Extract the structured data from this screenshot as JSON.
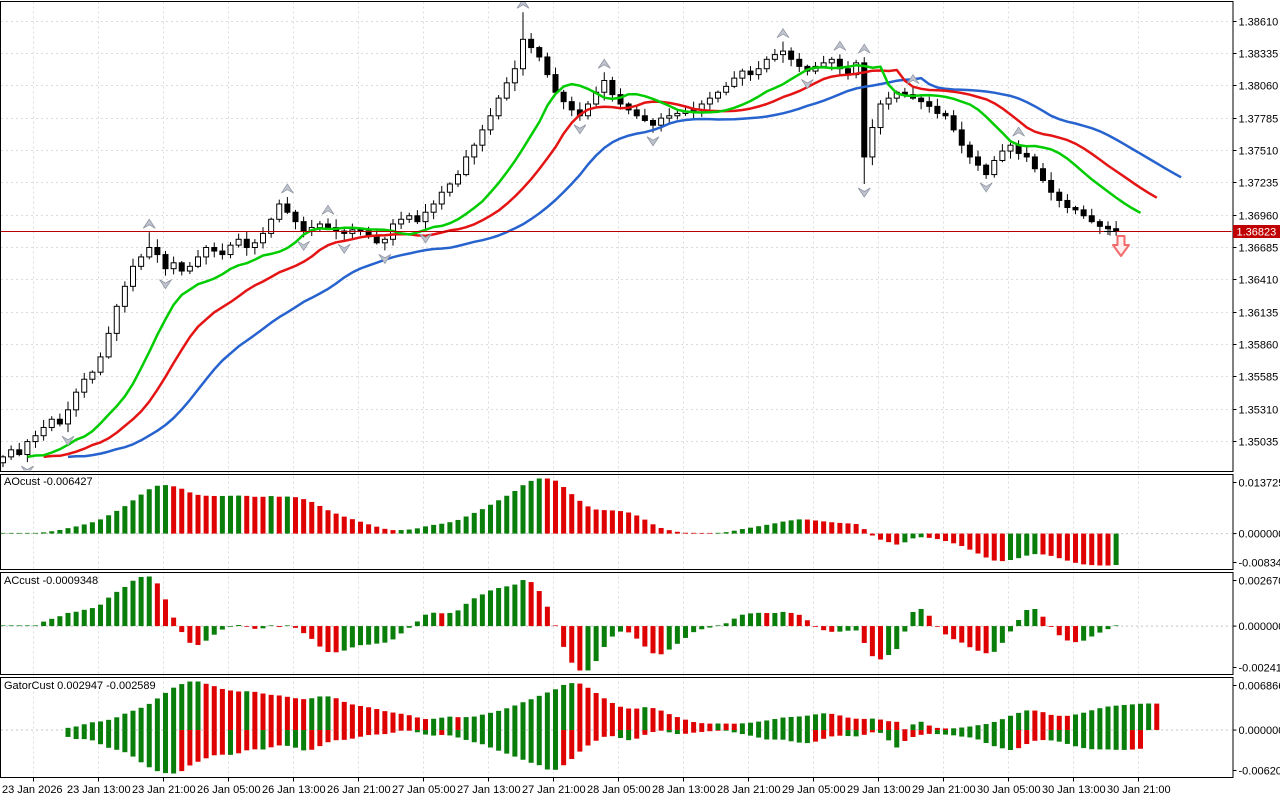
{
  "chart_data": {
    "type": "candlestick",
    "title": "",
    "time_axis": {
      "labels": [
        "23 Jan 2026",
        "23 Jan 13:00",
        "23 Jan 21:00",
        "26 Jan 05:00",
        "26 Jan 13:00",
        "26 Jan 21:00",
        "27 Jan 05:00",
        "27 Jan 13:00",
        "27 Jan 21:00",
        "28 Jan 05:00",
        "28 Jan 13:00",
        "28 Jan 21:00",
        "29 Jan 05:00",
        "29 Jan 13:00",
        "29 Jan 21:00",
        "30 Jan 05:00",
        "30 Jan 13:00",
        "30 Jan 21:00"
      ]
    },
    "price_axis": {
      "labels": [
        "1.38610",
        "1.38335",
        "1.38060",
        "1.37785",
        "1.37510",
        "1.37235",
        "1.36960",
        "1.36685",
        "1.36410",
        "1.36135",
        "1.35860",
        "1.35585",
        "1.35310",
        "1.35035"
      ],
      "axis_map": {
        "top_price": 1.3861,
        "top_y": 20.5,
        "bottom_price": 1.35035,
        "bottom_y": 441
      },
      "visible_range": [
        1.3477,
        1.3878
      ]
    },
    "current_price": "1.36823",
    "current_price_value": 1.36823,
    "series": {
      "timeframe": "H1",
      "first_open": 1.3485,
      "closes": [
        1.349,
        1.3496,
        1.3492,
        1.3503,
        1.3508,
        1.3515,
        1.3522,
        1.3518,
        1.353,
        1.3545,
        1.3556,
        1.3562,
        1.3575,
        1.3595,
        1.3618,
        1.3635,
        1.3652,
        1.366,
        1.3668,
        1.3662,
        1.365,
        1.3655,
        1.3648,
        1.3652,
        1.366,
        1.3668,
        1.3665,
        1.3662,
        1.367,
        1.3675,
        1.3668,
        1.3672,
        1.368,
        1.3692,
        1.3705,
        1.3698,
        1.369,
        1.3682,
        1.3685,
        1.3688,
        1.3685,
        1.3682,
        1.368,
        1.3683,
        1.3682,
        1.3678,
        1.3672,
        1.3675,
        1.3688,
        1.3692,
        1.3695,
        1.369,
        1.3698,
        1.3705,
        1.3715,
        1.3722,
        1.373,
        1.3745,
        1.3755,
        1.3768,
        1.378,
        1.3795,
        1.3808,
        1.382,
        1.3845,
        1.3838,
        1.383,
        1.3815,
        1.38,
        1.3792,
        1.3785,
        1.378,
        1.379,
        1.38,
        1.381,
        1.3798,
        1.379,
        1.3785,
        1.378,
        1.3776,
        1.3772,
        1.3778,
        1.378,
        1.3782,
        1.3784,
        1.3785,
        1.379,
        1.3795,
        1.38,
        1.3805,
        1.3812,
        1.3818,
        1.3815,
        1.382,
        1.3828,
        1.3832,
        1.3835,
        1.3828,
        1.3822,
        1.3818,
        1.3822,
        1.3825,
        1.3828,
        1.382,
        1.3815,
        1.3825,
        1.3745,
        1.377,
        1.379,
        1.3795,
        1.38,
        1.3798,
        1.3795,
        1.3792,
        1.3788,
        1.3782,
        1.378,
        1.3768,
        1.3755,
        1.3745,
        1.3738,
        1.373,
        1.3742,
        1.375,
        1.3755,
        1.3748,
        1.3745,
        1.3735,
        1.3725,
        1.3715,
        1.3708,
        1.3702,
        1.37,
        1.3695,
        1.369,
        1.3686,
        1.3684,
        1.36823
      ],
      "wick_overrides": {
        "18": {
          "high": 1.3681
        },
        "64": {
          "high": 1.3868
        },
        "96": {
          "high": 1.3843
        },
        "106": {
          "low": 1.3722
        }
      }
    },
    "overlays": {
      "alligator": {
        "jaw_period": 13,
        "jaw_shift": 8,
        "teeth_period": 8,
        "teeth_shift": 5,
        "lips_period": 5,
        "lips_shift": 3
      },
      "fractals": true
    },
    "panes": [
      {
        "id": "ao",
        "label": "AOcust -0.006427",
        "axis_labels": [
          "0.013725",
          "0.000000",
          "-0.008341"
        ]
      },
      {
        "id": "ac",
        "label": "ACcust -0.0009348",
        "axis_labels": [
          "0.0026701",
          "0.0000000",
          "-0.0024127"
        ]
      },
      {
        "id": "gator",
        "label": "GatorCust 0.002947 -0.002589",
        "axis_labels": [
          "0.006866",
          "0.000000",
          "-0.006200"
        ]
      }
    ],
    "annotations": {
      "sell_arrow": {
        "type": "down-arrow",
        "near_price": 1.36823,
        "color": "#F26A6A"
      },
      "last_price_marker": {
        "type": "cross"
      }
    }
  },
  "colors": {
    "background": "#FFFFFF",
    "border": "#000000",
    "grid": "#DCDCDC",
    "zero_line": "#C4C4C4",
    "candle_bull_fill": "#FFFFFF",
    "candle_bear_fill": "#000000",
    "candle_outline": "#000000",
    "alligator_jaw": "#2663CE",
    "alligator_teeth": "#E41414",
    "alligator_lips": "#00CC00",
    "hist_up": "#0A7E0A",
    "hist_down": "#DE0202",
    "price_line": "#B80000",
    "badge_bg": "#C00000",
    "badge_text": "#FFFFFF",
    "fractal_fill": "#C0C4CE",
    "fractal_stroke": "#9096A4",
    "text": "#000000"
  }
}
